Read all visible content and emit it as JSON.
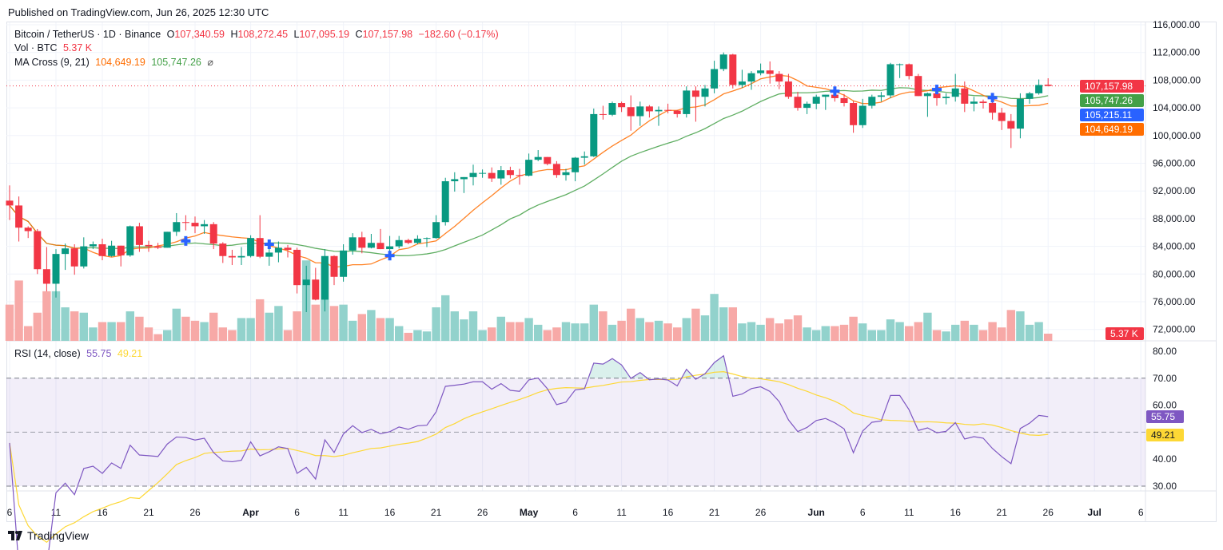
{
  "header": {
    "published": "Published on TradingView.com, Jun 26, 2025 12:30 UTC"
  },
  "legend": {
    "symbol": "Bitcoin / TetherUS · 1D · Binance",
    "o_label": "O",
    "o_value": "107,340.59",
    "h_label": "H",
    "h_value": "108,272.45",
    "l_label": "L",
    "l_value": "107,095.19",
    "c_label": "C",
    "c_value": "107,157.98",
    "change": "−182.60 (−0.17%)",
    "vol_label": "Vol · BTC",
    "vol_value": "5.37 K",
    "ma_label": "MA Cross (9, 21)",
    "ma_fast": "104,649.19",
    "ma_slow": "105,747.26",
    "ma_icon": "⌀",
    "rsi_label": "RSI (14, close)",
    "rsi_value": "55.75",
    "rsi_ma_value": "49.21"
  },
  "badges": {
    "last_price": "107,157.98",
    "ma_slow": "105,747.26",
    "cross": "105,215.11",
    "ma_fast": "104,649.19",
    "volume": "5.37 K",
    "rsi": "55.75",
    "rsi_ma": "49.21"
  },
  "colors": {
    "up": "#089981",
    "down": "#f23645",
    "vol_up": "#92d2cc",
    "vol_down": "#f7a9a7",
    "ma_fast": "#ff6d00",
    "ma_slow": "#43a047",
    "cross": "#2962ff",
    "rsi": "#7e57c2",
    "rsi_ma": "#fdd835"
  },
  "footer": {
    "brand": "TradingView"
  },
  "chart_data": {
    "type": "candlestick",
    "title": "Bitcoin / TetherUS · 1D · Binance",
    "price_unit": "thousand USDT",
    "volume_unit": "thousand BTC",
    "start_date": "2025-03-06",
    "ylim": [
      70.5,
      117
    ],
    "price_ticks": [
      "116,000.00",
      "112,000.00",
      "108,000.00",
      "104,000.00",
      "100,000.00",
      "96,000.00",
      "92,000.00",
      "88,000.00",
      "84,000.00",
      "80,000.00",
      "76,000.00",
      "72,000.00"
    ],
    "rsi_ticks": [
      "80.00",
      "70.00",
      "60.00",
      "40.00",
      "30.00"
    ],
    "rsi_bands": {
      "upper": 70,
      "middle": 50,
      "lower": 30
    },
    "time_ticks": [
      {
        "label": "6",
        "day": 0
      },
      {
        "label": "11",
        "day": 5
      },
      {
        "label": "16",
        "day": 10
      },
      {
        "label": "21",
        "day": 15
      },
      {
        "label": "26",
        "day": 20
      },
      {
        "label": "Apr",
        "day": 26,
        "bold": true
      },
      {
        "label": "6",
        "day": 31
      },
      {
        "label": "11",
        "day": 36
      },
      {
        "label": "16",
        "day": 41
      },
      {
        "label": "21",
        "day": 46
      },
      {
        "label": "26",
        "day": 51
      },
      {
        "label": "May",
        "day": 56,
        "bold": true
      },
      {
        "label": "6",
        "day": 61
      },
      {
        "label": "11",
        "day": 66
      },
      {
        "label": "16",
        "day": 71
      },
      {
        "label": "21",
        "day": 76
      },
      {
        "label": "26",
        "day": 81
      },
      {
        "label": "Jun",
        "day": 87,
        "bold": true
      },
      {
        "label": "6",
        "day": 92
      },
      {
        "label": "11",
        "day": 97
      },
      {
        "label": "16",
        "day": 102
      },
      {
        "label": "21",
        "day": 107
      },
      {
        "label": "26",
        "day": 112
      },
      {
        "label": "Jul",
        "day": 117,
        "bold": true
      },
      {
        "label": "6",
        "day": 122
      }
    ],
    "ma_periods": [
      9,
      21
    ],
    "rsi_period": 14,
    "cross_days": [
      19,
      28,
      41,
      89,
      100,
      106
    ],
    "ohlcv": [
      [
        90.6,
        92.8,
        87.8,
        89.9,
        27
      ],
      [
        89.9,
        91.2,
        84.7,
        86.7,
        45
      ],
      [
        86.7,
        86.9,
        85.2,
        86.2,
        11
      ],
      [
        86.2,
        86.5,
        80.0,
        80.7,
        21
      ],
      [
        80.7,
        83.9,
        77.5,
        78.6,
        37
      ],
      [
        78.6,
        83.6,
        76.6,
        82.9,
        37
      ],
      [
        82.9,
        84.4,
        80.6,
        83.7,
        25
      ],
      [
        83.7,
        84.3,
        79.9,
        81.1,
        22
      ],
      [
        81.1,
        85.3,
        80.8,
        84.0,
        21
      ],
      [
        84.0,
        84.7,
        83.6,
        84.3,
        10
      ],
      [
        84.3,
        85.1,
        82.0,
        82.6,
        14
      ],
      [
        82.6,
        84.8,
        82.5,
        84.1,
        14
      ],
      [
        84.1,
        84.1,
        81.1,
        82.7,
        14
      ],
      [
        82.7,
        87.0,
        82.5,
        86.9,
        22
      ],
      [
        86.9,
        87.4,
        83.2,
        84.2,
        18
      ],
      [
        84.2,
        84.8,
        83.2,
        84.0,
        10
      ],
      [
        84.0,
        84.5,
        83.6,
        83.8,
        5
      ],
      [
        83.8,
        86.1,
        83.8,
        86.1,
        8
      ],
      [
        86.1,
        88.8,
        85.5,
        87.5,
        24
      ],
      [
        87.5,
        88.5,
        86.3,
        87.4,
        18
      ],
      [
        87.4,
        88.3,
        85.9,
        86.9,
        15
      ],
      [
        86.9,
        87.8,
        85.8,
        87.2,
        14
      ],
      [
        87.2,
        87.5,
        83.6,
        84.4,
        21
      ],
      [
        84.4,
        84.6,
        81.6,
        82.6,
        10
      ],
      [
        82.6,
        83.5,
        81.3,
        82.4,
        8
      ],
      [
        82.4,
        83.9,
        81.3,
        82.6,
        17
      ],
      [
        82.6,
        85.6,
        82.4,
        85.2,
        17
      ],
      [
        85.2,
        88.5,
        82.3,
        82.5,
        31
      ],
      [
        82.5,
        83.9,
        81.2,
        83.1,
        21
      ],
      [
        83.1,
        84.7,
        81.7,
        83.8,
        26
      ],
      [
        83.8,
        84.2,
        82.4,
        83.5,
        8
      ],
      [
        83.5,
        83.8,
        77.2,
        78.4,
        22
      ],
      [
        78.4,
        81.2,
        74.5,
        79.2,
        60
      ],
      [
        79.2,
        80.9,
        76.2,
        76.3,
        27
      ],
      [
        76.3,
        83.6,
        74.6,
        82.6,
        58
      ],
      [
        82.6,
        82.7,
        78.4,
        79.6,
        26
      ],
      [
        79.6,
        84.3,
        78.9,
        83.4,
        27
      ],
      [
        83.4,
        85.9,
        82.8,
        85.3,
        15
      ],
      [
        85.3,
        86.1,
        83.0,
        83.8,
        20
      ],
      [
        83.8,
        85.8,
        83.7,
        84.5,
        23
      ],
      [
        84.5,
        86.5,
        83.6,
        83.6,
        17
      ],
      [
        83.6,
        85.5,
        83.1,
        84.0,
        17
      ],
      [
        84.0,
        85.5,
        83.7,
        84.9,
        11
      ],
      [
        84.9,
        85.1,
        84.3,
        84.5,
        6
      ],
      [
        84.5,
        85.6,
        84.3,
        85.1,
        8
      ],
      [
        85.1,
        85.3,
        83.9,
        85.2,
        7
      ],
      [
        85.2,
        88.5,
        85.1,
        87.5,
        25
      ],
      [
        87.5,
        93.9,
        87.0,
        93.4,
        34
      ],
      [
        93.4,
        94.7,
        91.9,
        93.7,
        22
      ],
      [
        93.7,
        94.0,
        91.7,
        94.0,
        16
      ],
      [
        94.0,
        95.8,
        92.8,
        94.6,
        22
      ],
      [
        94.6,
        95.1,
        93.9,
        94.6,
        8
      ],
      [
        94.6,
        95.4,
        93.3,
        93.8,
        10
      ],
      [
        93.8,
        95.6,
        92.9,
        95.0,
        18
      ],
      [
        95.0,
        95.5,
        93.8,
        94.3,
        14
      ],
      [
        94.3,
        95.2,
        92.9,
        94.2,
        14
      ],
      [
        94.2,
        97.4,
        94.1,
        96.5,
        17
      ],
      [
        96.5,
        97.9,
        96.3,
        96.9,
        12
      ],
      [
        96.9,
        96.9,
        95.7,
        95.9,
        8
      ],
      [
        95.9,
        96.3,
        93.9,
        94.3,
        10
      ],
      [
        94.3,
        95.2,
        93.5,
        94.7,
        14
      ],
      [
        94.7,
        96.9,
        93.4,
        96.8,
        13
      ],
      [
        96.8,
        97.7,
        95.8,
        97.0,
        13
      ],
      [
        97.0,
        103.9,
        96.9,
        103.1,
        27
      ],
      [
        103.1,
        104.3,
        102.3,
        103.0,
        22
      ],
      [
        103.0,
        104.9,
        102.8,
        104.7,
        12
      ],
      [
        104.7,
        104.9,
        103.4,
        104.1,
        15
      ],
      [
        104.1,
        105.8,
        100.7,
        102.8,
        24
      ],
      [
        102.8,
        104.9,
        101.4,
        104.2,
        17
      ],
      [
        104.2,
        104.4,
        102.6,
        103.5,
        14
      ],
      [
        103.5,
        104.2,
        101.4,
        103.7,
        15
      ],
      [
        103.7,
        104.6,
        103.2,
        103.6,
        13
      ],
      [
        103.6,
        103.7,
        102.6,
        103.1,
        10
      ],
      [
        103.1,
        107.1,
        102.6,
        106.5,
        17
      ],
      [
        106.5,
        107.1,
        102.0,
        105.6,
        24
      ],
      [
        105.6,
        107.3,
        104.2,
        106.8,
        19
      ],
      [
        106.8,
        110.8,
        106.1,
        109.6,
        35
      ],
      [
        109.6,
        112.0,
        109.3,
        111.7,
        25
      ],
      [
        111.7,
        111.8,
        106.8,
        107.3,
        25
      ],
      [
        107.3,
        109.5,
        106.9,
        107.8,
        13
      ],
      [
        107.8,
        109.3,
        106.6,
        109.0,
        14
      ],
      [
        109.0,
        110.4,
        108.7,
        109.4,
        12
      ],
      [
        109.4,
        110.7,
        107.5,
        108.9,
        17
      ],
      [
        108.9,
        109.3,
        106.7,
        107.8,
        13
      ],
      [
        107.8,
        108.9,
        105.3,
        105.6,
        16
      ],
      [
        105.6,
        106.3,
        103.6,
        104.0,
        19
      ],
      [
        104.0,
        104.9,
        103.1,
        104.6,
        10
      ],
      [
        104.6,
        105.9,
        103.8,
        105.6,
        8
      ],
      [
        105.6,
        105.9,
        103.7,
        105.9,
        11
      ],
      [
        105.9,
        106.8,
        104.9,
        105.4,
        11
      ],
      [
        105.4,
        106.0,
        104.2,
        104.7,
        12
      ],
      [
        104.7,
        105.0,
        100.4,
        101.5,
        18
      ],
      [
        101.5,
        105.3,
        101.1,
        104.3,
        13
      ],
      [
        104.3,
        105.9,
        103.9,
        105.6,
        8
      ],
      [
        105.6,
        106.3,
        104.9,
        105.8,
        8
      ],
      [
        105.8,
        110.5,
        105.4,
        110.3,
        16
      ],
      [
        110.2,
        110.4,
        108.3,
        110.3,
        14
      ],
      [
        110.3,
        110.4,
        108.1,
        108.6,
        11
      ],
      [
        108.6,
        108.9,
        105.7,
        105.7,
        14
      ],
      [
        105.7,
        106.2,
        102.7,
        106.1,
        21
      ],
      [
        106.1,
        106.2,
        104.3,
        105.4,
        8
      ],
      [
        105.4,
        106.1,
        104.5,
        105.6,
        7
      ],
      [
        105.6,
        108.9,
        104.9,
        106.8,
        12
      ],
      [
        106.8,
        107.8,
        103.4,
        104.6,
        15
      ],
      [
        104.6,
        105.6,
        103.5,
        104.9,
        12
      ],
      [
        104.9,
        105.2,
        103.9,
        104.7,
        8
      ],
      [
        104.7,
        106.1,
        102.3,
        103.3,
        14
      ],
      [
        103.3,
        104.0,
        100.8,
        102.1,
        10
      ],
      [
        102.1,
        103.1,
        98.2,
        101.0,
        23
      ],
      [
        101.0,
        106.1,
        99.6,
        105.3,
        22
      ],
      [
        105.3,
        106.3,
        104.6,
        106.1,
        12
      ],
      [
        106.1,
        108.1,
        105.9,
        107.3,
        14
      ],
      [
        107.34,
        108.27,
        107.1,
        107.16,
        5.37
      ]
    ]
  }
}
